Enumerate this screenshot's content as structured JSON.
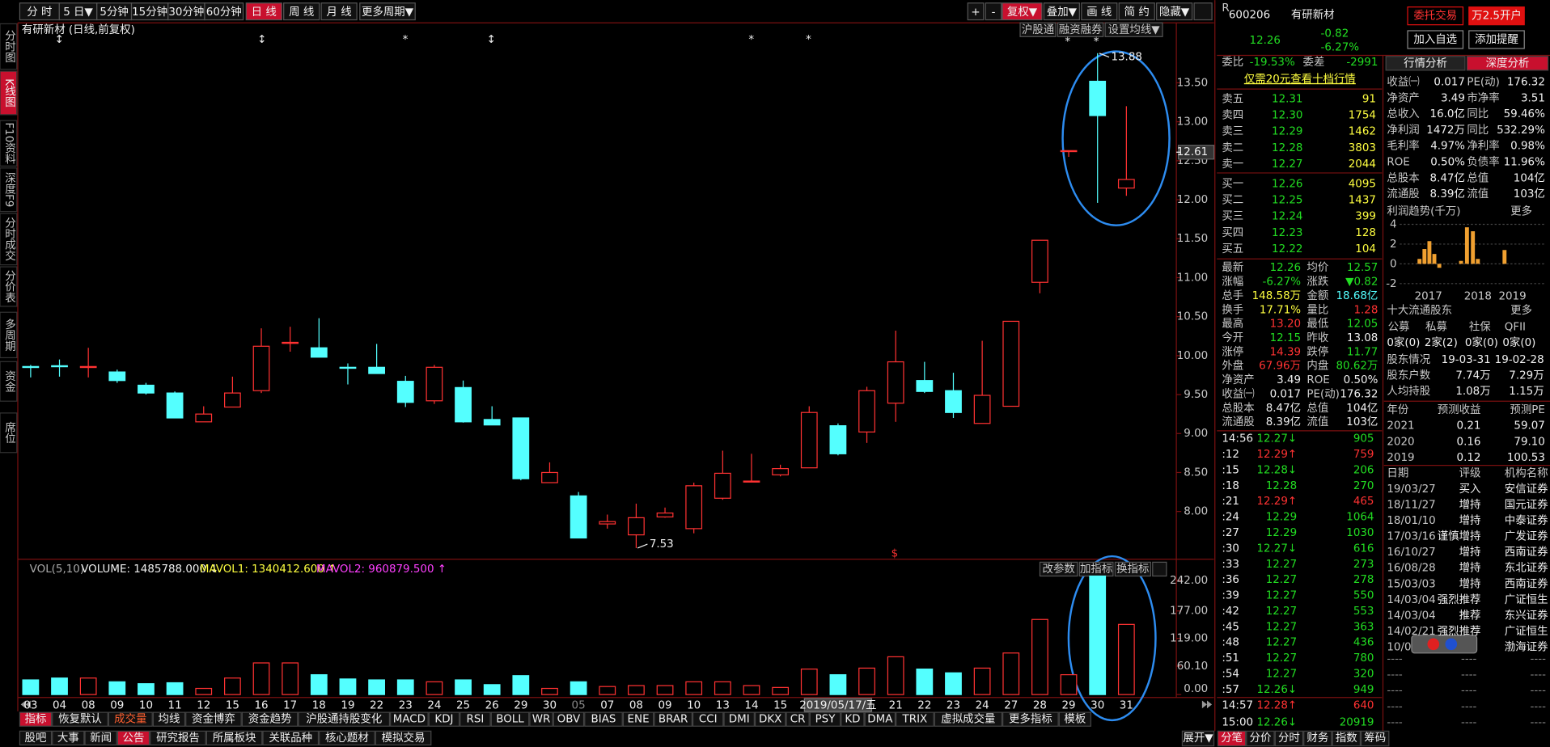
{
  "toolbar": {
    "periods": [
      "分 时",
      "5 日▼",
      "5分钟",
      "15分钟",
      "30分钟",
      "60分钟",
      "日 线",
      "周 线",
      "月 线",
      "更多周期▼"
    ],
    "right": [
      "+",
      "-",
      "复权▼",
      "叠加▼",
      "画 线",
      "简 约",
      "隐藏▼"
    ]
  },
  "sidebar": [
    "分时图",
    "K线图",
    "F10资料",
    "深度F9",
    "分时成交",
    "分价表",
    "多周期",
    "资金",
    "席位"
  ],
  "kline": {
    "title": "有研新材 (日线,前复权)",
    "buttons": [
      "沪股通",
      "融资融券",
      "设置均线▼"
    ],
    "ylim": [
      7.4,
      14.08
    ],
    "yticks": [
      {
        "value": 8,
        "label": "8.00"
      },
      {
        "value": 8.5,
        "label": "8.50"
      },
      {
        "value": 9,
        "label": "9.00"
      },
      {
        "value": 9.5,
        "label": "9.50"
      },
      {
        "value": 10,
        "label": "10.00"
      },
      {
        "value": 10.5,
        "label": "10.50"
      },
      {
        "value": 11,
        "label": "11.00"
      },
      {
        "value": 11.5,
        "label": "11.50"
      },
      {
        "value": 12,
        "label": "12.00"
      },
      {
        "value": 12.5,
        "label": "12.50"
      },
      {
        "value": 13,
        "label": "13.00"
      },
      {
        "value": 13.5,
        "label": "13.50"
      }
    ],
    "cursor_price": {
      "value": 12.61,
      "label": "12.61"
    },
    "high_label": {
      "value": 13.88,
      "label": "13.88"
    },
    "low_label": {
      "value": 7.53,
      "label": "7.53"
    },
    "markers": [
      "↕",
      "↕",
      "*",
      "↕",
      "*",
      "*",
      "*",
      "*",
      "$"
    ],
    "dates": [
      "03",
      "04",
      "08",
      "09",
      "10",
      "11",
      "12",
      "15",
      "16",
      "17",
      "18",
      "19",
      "22",
      "23",
      "24",
      "25",
      "26",
      "29",
      "30",
      "05",
      "07",
      "08",
      "09",
      "10",
      "13",
      "14",
      "15",
      "16",
      "2019/05/17/五",
      null,
      "21",
      "22",
      "23",
      "24",
      "27",
      "28",
      "29",
      "30",
      "31"
    ],
    "candles": [
      {
        "open": 9.86,
        "high": 9.88,
        "low": 9.72,
        "close": 9.85
      },
      {
        "open": 9.87,
        "high": 9.95,
        "low": 9.73,
        "close": 9.86
      },
      {
        "open": 9.86,
        "high": 10.1,
        "low": 9.72,
        "close": 9.86
      },
      {
        "open": 9.79,
        "high": 9.82,
        "low": 9.65,
        "close": 9.68
      },
      {
        "open": 9.62,
        "high": 9.65,
        "low": 9.5,
        "close": 9.52
      },
      {
        "open": 9.52,
        "high": 9.54,
        "low": 9.2,
        "close": 9.2
      },
      {
        "open": 9.15,
        "high": 9.35,
        "low": 9.15,
        "close": 9.25
      },
      {
        "open": 9.34,
        "high": 9.73,
        "low": 9.34,
        "close": 9.52
      },
      {
        "open": 9.55,
        "high": 10.35,
        "low": 9.52,
        "close": 10.12
      },
      {
        "open": 10.17,
        "high": 10.37,
        "low": 10.05,
        "close": 10.17
      },
      {
        "open": 10.1,
        "high": 10.48,
        "low": 9.98,
        "close": 9.98
      },
      {
        "open": 9.85,
        "high": 9.9,
        "low": 9.63,
        "close": 9.84
      },
      {
        "open": 9.85,
        "high": 10.15,
        "low": 9.77,
        "close": 9.77
      },
      {
        "open": 9.67,
        "high": 9.74,
        "low": 9.34,
        "close": 9.4
      },
      {
        "open": 9.42,
        "high": 9.88,
        "low": 9.38,
        "close": 9.85
      },
      {
        "open": 9.59,
        "high": 9.68,
        "low": 9.14,
        "close": 9.15
      },
      {
        "open": 9.18,
        "high": 9.35,
        "low": 9.11,
        "close": 9.11
      },
      {
        "open": 9.2,
        "high": 9.2,
        "low": 8.4,
        "close": 8.42
      },
      {
        "open": 8.37,
        "high": 8.63,
        "low": 8.37,
        "close": 8.5
      },
      {
        "open": 8.2,
        "high": 8.25,
        "low": 7.66,
        "close": 7.66
      },
      {
        "open": 7.84,
        "high": 7.96,
        "low": 7.78,
        "close": 7.87
      },
      {
        "open": 7.7,
        "high": 8.1,
        "low": 7.53,
        "close": 7.92
      },
      {
        "open": 7.93,
        "high": 8.05,
        "low": 7.92,
        "close": 7.98
      },
      {
        "open": 7.78,
        "high": 8.37,
        "low": 7.72,
        "close": 8.33
      },
      {
        "open": 8.17,
        "high": 8.78,
        "low": 8.15,
        "close": 8.49
      },
      {
        "open": 8.38,
        "high": 8.74,
        "low": 8.38,
        "close": 8.39
      },
      {
        "open": 8.47,
        "high": 8.6,
        "low": 8.45,
        "close": 8.55
      },
      {
        "open": 8.56,
        "high": 9.35,
        "low": 8.56,
        "close": 9.27
      },
      {
        "open": 9.1,
        "high": 9.13,
        "low": 8.72,
        "close": 8.74
      },
      {
        "open": 9.02,
        "high": 9.6,
        "low": 8.88,
        "close": 9.55
      },
      {
        "open": 9.39,
        "high": 10.32,
        "low": 9.15,
        "close": 9.92
      },
      {
        "open": 9.68,
        "high": 9.92,
        "low": 9.52,
        "close": 9.54
      },
      {
        "open": 9.55,
        "high": 9.78,
        "low": 9.2,
        "close": 9.27
      },
      {
        "open": 9.13,
        "high": 10.19,
        "low": 9.13,
        "close": 9.49
      },
      {
        "open": 9.35,
        "high": 10.44,
        "low": 9.35,
        "close": 10.44
      },
      {
        "open": 10.94,
        "high": 11.48,
        "low": 10.8,
        "close": 11.48
      },
      {
        "open": 12.62,
        "high": 12.63,
        "low": 12.55,
        "close": 12.63
      },
      {
        "open": 13.52,
        "high": 13.88,
        "low": 11.96,
        "close": 13.08
      },
      {
        "open": 12.15,
        "high": 13.2,
        "low": 12.05,
        "close": 12.26
      }
    ]
  },
  "volume": {
    "legend": [
      "VOL(5,10)",
      "VOLUME: 1485788.000 ↓",
      "MAVOL1: 1340412.600 ↑",
      "MAVOL2: 960879.500 ↑"
    ],
    "buttons": [
      "改参数",
      "加指标",
      "换指标"
    ],
    "ylim": [
      0,
      261.5
    ],
    "yticks": [
      {
        "value": 0,
        "label": "0.00"
      },
      {
        "value": 60.1,
        "label": "60.10"
      },
      {
        "value": 119,
        "label": "119.00"
      },
      {
        "value": 177,
        "label": "177.00"
      },
      {
        "value": 242,
        "label": "242.00"
      }
    ],
    "values": [
      31,
      35,
      35,
      27,
      23,
      25,
      13,
      35,
      67,
      67,
      42,
      33,
      31,
      31,
      27,
      31,
      21,
      40,
      13,
      27,
      17,
      19,
      19,
      27,
      27,
      19,
      15,
      54,
      42,
      56,
      80,
      54,
      46,
      56,
      88,
      159,
      42,
      251,
      148.58
    ]
  },
  "indicator_tabs": [
    "指标",
    "恢复默认",
    "成交量",
    "均线",
    "资金博弈",
    "资金趋势",
    "沪股通持股变化",
    "MACD",
    "KDJ",
    "RSI",
    "BOLL",
    "WR",
    "OBV",
    "BIAS",
    "ENE",
    "BRAR",
    "CCI",
    "DMI",
    "DKX",
    "CR",
    "PSY",
    "KD",
    "DMA",
    "TRIX",
    "虚拟成交量",
    "更多指标",
    "模板"
  ],
  "status_tabs": [
    "股吧",
    "大事",
    "新闻",
    "公告",
    "研究报告",
    "所属板块",
    "关联品种",
    "核心题材",
    "模拟交易"
  ],
  "quote": {
    "flag": "R",
    "code": "600206",
    "name": "有研新材",
    "price": "12.26",
    "change": "-0.82",
    "pct": "-6.27%",
    "buttons": [
      "委托交易",
      "万2.5开户",
      "加入自选",
      "添加提醒"
    ],
    "ratio": [
      "委比",
      "-19.53%",
      "委差",
      "-2991"
    ],
    "promo": "仅需20元查看十档行情",
    "asks": [
      [
        "卖五",
        "12.31",
        "91"
      ],
      [
        "卖四",
        "12.30",
        "1754"
      ],
      [
        "卖三",
        "12.29",
        "1462"
      ],
      [
        "卖二",
        "12.28",
        "3803"
      ],
      [
        "卖一",
        "12.27",
        "2044"
      ]
    ],
    "bids": [
      [
        "买一",
        "12.26",
        "4095"
      ],
      [
        "买二",
        "12.25",
        "1437"
      ],
      [
        "买三",
        "12.24",
        "399"
      ],
      [
        "买四",
        "12.23",
        "128"
      ],
      [
        "买五",
        "12.22",
        "104"
      ]
    ],
    "stats": [
      [
        "最新",
        "12.26",
        "均价",
        "12.57"
      ],
      [
        "涨幅",
        "-6.27%",
        "涨跌",
        "▼0.82"
      ],
      [
        "总手",
        "148.58万",
        "金额",
        "18.68亿"
      ],
      [
        "换手",
        "17.71%",
        "量比",
        "1.28"
      ],
      [
        "最高",
        "13.20",
        "最低",
        "12.05"
      ],
      [
        "今开",
        "12.15",
        "昨收",
        "13.08"
      ],
      [
        "涨停",
        "14.39",
        "跌停",
        "11.77"
      ],
      [
        "外盘",
        "67.96万",
        "内盘",
        "80.62万"
      ],
      [
        "净资产",
        "3.49",
        "ROE",
        "0.50%"
      ],
      [
        "收益㈠",
        "0.017",
        "PE(动)",
        "176.32"
      ],
      [
        "总股本",
        "8.47亿",
        "总值",
        "104亿"
      ],
      [
        "流通股",
        "8.39亿",
        "流值",
        "103亿"
      ]
    ],
    "ticks": [
      [
        "14:56",
        "12.27↓",
        "905"
      ],
      [
        ":12",
        "12.29↑",
        "759"
      ],
      [
        ":15",
        "12.28↓",
        "206"
      ],
      [
        ":18",
        "12.28",
        "270"
      ],
      [
        ":21",
        "12.29↑",
        "465"
      ],
      [
        ":24",
        "12.29",
        "1064"
      ],
      [
        ":27",
        "12.29",
        "1030"
      ],
      [
        ":30",
        "12.27↓",
        "616"
      ],
      [
        ":33",
        "12.27",
        "273"
      ],
      [
        ":36",
        "12.27",
        "278"
      ],
      [
        ":39",
        "12.27",
        "550"
      ],
      [
        ":42",
        "12.27",
        "553"
      ],
      [
        ":45",
        "12.27",
        "363"
      ],
      [
        ":48",
        "12.27",
        "436"
      ],
      [
        ":51",
        "12.27",
        "780"
      ],
      [
        ":54",
        "12.27",
        "320"
      ],
      [
        ":57",
        "12.26↓",
        "949"
      ]
    ],
    "ticks_latest": [
      [
        "14:57",
        "12.28↑",
        "640"
      ],
      [
        "15:00",
        "12.26↓",
        "20919"
      ]
    ],
    "bottom_tabs": [
      "展开▼",
      "分笔",
      "分价",
      "分时",
      "财务",
      "指数",
      "筹码"
    ]
  },
  "deep": {
    "tabs": [
      "行情分析",
      "深度分析"
    ],
    "fin": [
      [
        "收益㈠",
        "0.017",
        "PE(动)",
        "176.32"
      ],
      [
        "净资产",
        "3.49",
        "市净率",
        "3.51"
      ],
      [
        "总收入",
        "16.0亿",
        "同比",
        "59.46%"
      ],
      [
        "净利润",
        "1472万",
        "同比",
        "532.29%"
      ],
      [
        "毛利率",
        "4.97%",
        "净利率",
        "0.98%"
      ],
      [
        "ROE",
        "0.50%",
        "负债率",
        "11.96%"
      ],
      [
        "总股本",
        "8.47亿",
        "总值",
        "104亿"
      ],
      [
        "流通股",
        "8.39亿",
        "流值",
        "103亿"
      ]
    ],
    "profit": {
      "title": "利润趋势(千万)",
      "more": "更多",
      "ylim": [
        -2.5,
        4.5
      ],
      "yticks": [
        -2,
        0,
        2,
        4
      ],
      "years": [
        "2017",
        "2018",
        "2019"
      ],
      "color": "#f0a030",
      "values": [
        0.5,
        1.5,
        2.3,
        1.0,
        -0.4,
        0.3,
        3.7,
        3.3,
        0.5,
        1.4
      ]
    },
    "holders": {
      "title": "十大流通股东",
      "more": "更多",
      "head": [
        "公募",
        "私募",
        "社保",
        "QFII"
      ],
      "row": [
        "0家(0)",
        "2家(2)",
        "0家(0)",
        "0家(0)"
      ],
      "rows": [
        [
          "股东情况",
          "19-03-31",
          "19-02-28"
        ],
        [
          "股东户数",
          "7.74万",
          "7.29万"
        ],
        [
          "人均持股",
          "1.08万",
          "1.15万"
        ]
      ]
    },
    "forecast": {
      "head": [
        "年份",
        "预测收益",
        "预测PE"
      ],
      "rows": [
        [
          "2021",
          "0.21",
          "59.07"
        ],
        [
          "2020",
          "0.16",
          "79.10"
        ],
        [
          "2019",
          "0.12",
          "100.53"
        ]
      ]
    },
    "ratings": {
      "head": [
        "日期",
        "评级",
        "机构名称"
      ],
      "rows": [
        [
          "19/03/27",
          "买入",
          "安信证券"
        ],
        [
          "18/11/27",
          "增持",
          "国元证券"
        ],
        [
          "18/01/10",
          "增持",
          "中泰证券"
        ],
        [
          "17/03/16",
          "谨慎增持",
          "广发证券"
        ],
        [
          "16/10/27",
          "增持",
          "西南证券"
        ],
        [
          "16/08/28",
          "增持",
          "东北证券"
        ],
        [
          "15/03/03",
          "增持",
          "西南证券"
        ],
        [
          "14/03/04",
          "强烈推荐",
          "广证恒生"
        ],
        [
          "14/03/04",
          "推荐",
          "东兴证券"
        ],
        [
          "14/02/21",
          "强烈推荐",
          "广证恒生"
        ],
        [
          "10/0",
          "渤海证券"
        ]
      ],
      "dash": "----"
    }
  }
}
